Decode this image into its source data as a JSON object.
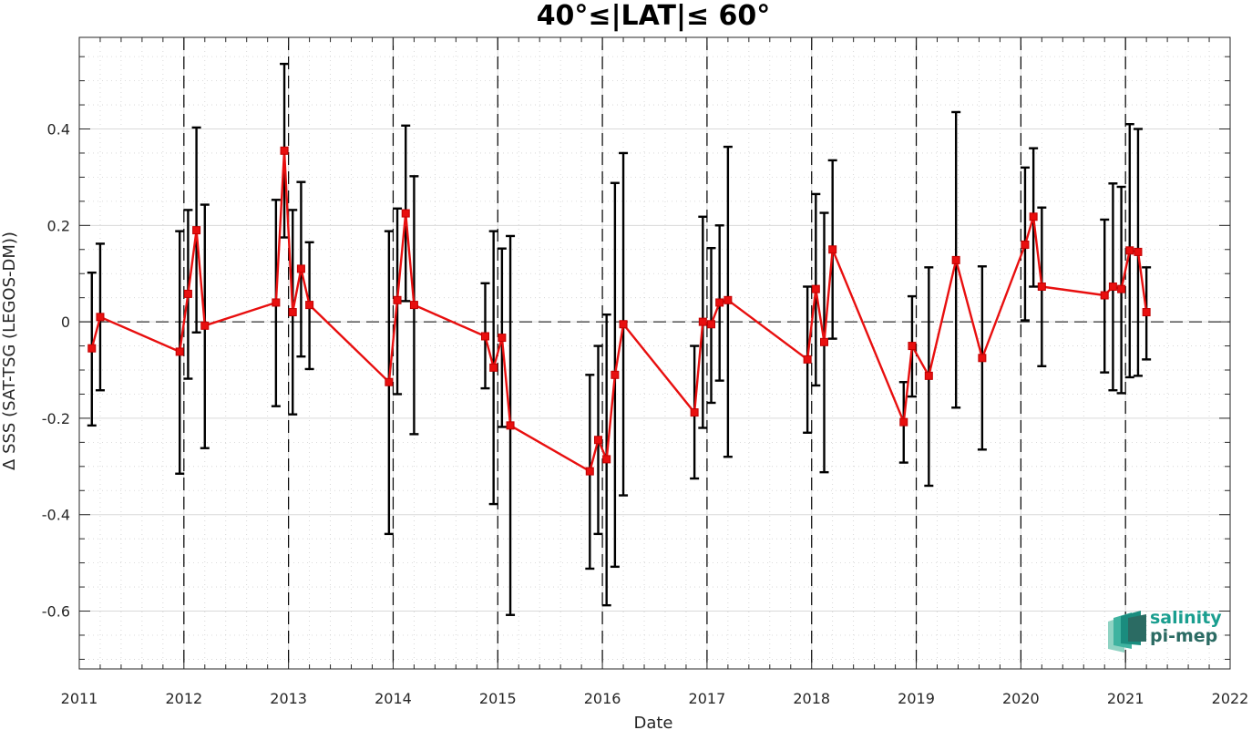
{
  "chart_data": {
    "type": "line",
    "title": "40°≤|LAT|≤ 60°",
    "xlabel": "Date",
    "ylabel": "Δ SSS (SAT-TSG (LEGOS-DM))",
    "xlim": [
      2011,
      2022
    ],
    "ylim": [
      -0.72,
      0.59
    ],
    "x_ticks": [
      "2011",
      "2012",
      "2013",
      "2014",
      "2015",
      "2016",
      "2017",
      "2018",
      "2019",
      "2020",
      "2021",
      "2022"
    ],
    "y_ticks": [
      {
        "value": 0.4,
        "label": "0.4"
      },
      {
        "value": 0.2,
        "label": "0.2"
      },
      {
        "value": 0,
        "label": "0"
      },
      {
        "value": -0.2,
        "label": "-0.2"
      },
      {
        "value": -0.4,
        "label": "-0.4"
      },
      {
        "value": -0.6,
        "label": "-0.6"
      }
    ],
    "grid": true,
    "year_dividers": [
      2012,
      2013,
      2014,
      2015,
      2016,
      2017,
      2018,
      2019,
      2020,
      2021
    ],
    "zero_line": 0,
    "series": [
      {
        "color": "#e80f0f",
        "errorbar_color": "#000000",
        "points": [
          {
            "x": 2011.12,
            "y": -0.055,
            "lo": -0.215,
            "hi": 0.102
          },
          {
            "x": 2011.2,
            "y": 0.01,
            "lo": -0.142,
            "hi": 0.162
          },
          {
            "x": 2011.96,
            "y": -0.062,
            "lo": -0.315,
            "hi": 0.188
          },
          {
            "x": 2012.04,
            "y": 0.058,
            "lo": -0.118,
            "hi": 0.232
          },
          {
            "x": 2012.12,
            "y": 0.19,
            "lo": -0.022,
            "hi": 0.403
          },
          {
            "x": 2012.2,
            "y": -0.008,
            "lo": -0.262,
            "hi": 0.243
          },
          {
            "x": 2012.88,
            "y": 0.04,
            "lo": -0.175,
            "hi": 0.253
          },
          {
            "x": 2012.96,
            "y": 0.355,
            "lo": 0.175,
            "hi": 0.535
          },
          {
            "x": 2013.04,
            "y": 0.02,
            "lo": -0.192,
            "hi": 0.232
          },
          {
            "x": 2013.12,
            "y": 0.11,
            "lo": -0.072,
            "hi": 0.29
          },
          {
            "x": 2013.2,
            "y": 0.035,
            "lo": -0.098,
            "hi": 0.165
          },
          {
            "x": 2013.96,
            "y": -0.125,
            "lo": -0.44,
            "hi": 0.188
          },
          {
            "x": 2014.04,
            "y": 0.045,
            "lo": -0.15,
            "hi": 0.235
          },
          {
            "x": 2014.12,
            "y": 0.225,
            "lo": 0.043,
            "hi": 0.407
          },
          {
            "x": 2014.2,
            "y": 0.035,
            "lo": -0.233,
            "hi": 0.302
          },
          {
            "x": 2014.88,
            "y": -0.03,
            "lo": -0.138,
            "hi": 0.08
          },
          {
            "x": 2014.96,
            "y": -0.095,
            "lo": -0.378,
            "hi": 0.188
          },
          {
            "x": 2015.04,
            "y": -0.033,
            "lo": -0.218,
            "hi": 0.152
          },
          {
            "x": 2015.12,
            "y": -0.215,
            "lo": -0.608,
            "hi": 0.178
          },
          {
            "x": 2015.88,
            "y": -0.31,
            "lo": -0.512,
            "hi": -0.11
          },
          {
            "x": 2015.96,
            "y": -0.245,
            "lo": -0.44,
            "hi": -0.05
          },
          {
            "x": 2016.04,
            "y": -0.285,
            "lo": -0.588,
            "hi": 0.015
          },
          {
            "x": 2016.12,
            "y": -0.11,
            "lo": -0.508,
            "hi": 0.288
          },
          {
            "x": 2016.2,
            "y": -0.005,
            "lo": -0.36,
            "hi": 0.35
          },
          {
            "x": 2016.88,
            "y": -0.188,
            "lo": -0.325,
            "hi": -0.05
          },
          {
            "x": 2016.96,
            "y": 0.0,
            "lo": -0.22,
            "hi": 0.218
          },
          {
            "x": 2017.04,
            "y": -0.005,
            "lo": -0.168,
            "hi": 0.153
          },
          {
            "x": 2017.12,
            "y": 0.04,
            "lo": -0.122,
            "hi": 0.2
          },
          {
            "x": 2017.2,
            "y": 0.045,
            "lo": -0.28,
            "hi": 0.363
          },
          {
            "x": 2017.96,
            "y": -0.078,
            "lo": -0.23,
            "hi": 0.073
          },
          {
            "x": 2018.04,
            "y": 0.068,
            "lo": -0.132,
            "hi": 0.265
          },
          {
            "x": 2018.12,
            "y": -0.042,
            "lo": -0.312,
            "hi": 0.226
          },
          {
            "x": 2018.2,
            "y": 0.15,
            "lo": -0.035,
            "hi": 0.335
          },
          {
            "x": 2018.88,
            "y": -0.208,
            "lo": -0.292,
            "hi": -0.125
          },
          {
            "x": 2018.96,
            "y": -0.05,
            "lo": -0.155,
            "hi": 0.053
          },
          {
            "x": 2019.12,
            "y": -0.112,
            "lo": -0.34,
            "hi": 0.113
          },
          {
            "x": 2019.38,
            "y": 0.128,
            "lo": -0.178,
            "hi": 0.435
          },
          {
            "x": 2019.63,
            "y": -0.075,
            "lo": -0.265,
            "hi": 0.115
          },
          {
            "x": 2020.04,
            "y": 0.16,
            "lo": 0.003,
            "hi": 0.32
          },
          {
            "x": 2020.12,
            "y": 0.218,
            "lo": 0.073,
            "hi": 0.36
          },
          {
            "x": 2020.2,
            "y": 0.073,
            "lo": -0.092,
            "hi": 0.237
          },
          {
            "x": 2020.8,
            "y": 0.055,
            "lo": -0.105,
            "hi": 0.212
          },
          {
            "x": 2020.88,
            "y": 0.073,
            "lo": -0.142,
            "hi": 0.287
          },
          {
            "x": 2020.96,
            "y": 0.068,
            "lo": -0.148,
            "hi": 0.28
          },
          {
            "x": 2021.04,
            "y": 0.148,
            "lo": -0.115,
            "hi": 0.41
          },
          {
            "x": 2021.12,
            "y": 0.145,
            "lo": -0.112,
            "hi": 0.4
          },
          {
            "x": 2021.2,
            "y": 0.02,
            "lo": -0.078,
            "hi": 0.113
          }
        ]
      }
    ]
  },
  "logo": {
    "line1": "salinity",
    "line2": "pi-mep",
    "colors": [
      "#1a9e8f",
      "#2b6b63",
      "#8fd3c3"
    ]
  }
}
